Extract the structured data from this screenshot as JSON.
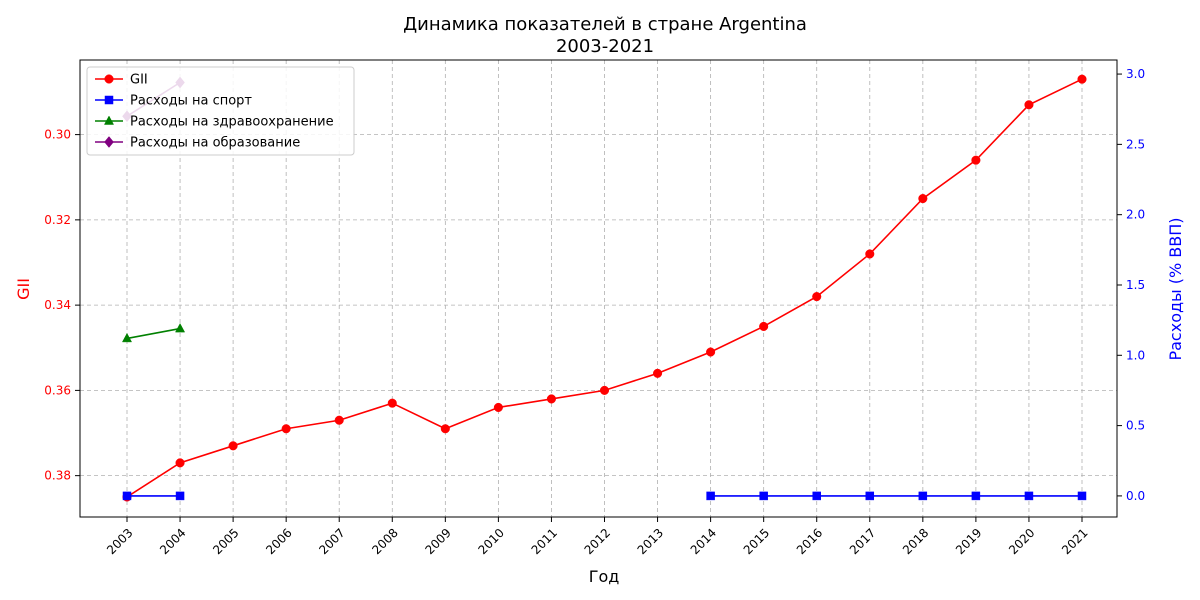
{
  "chart_data": {
    "type": "line",
    "title": "Динамика показателей в стране Argentina",
    "subtitle": "2003-2021",
    "xlabel": "Год",
    "ylabel_left": "GII",
    "ylabel_right": "Расходы (% ВВП)",
    "x": [
      2003,
      2004,
      2005,
      2006,
      2007,
      2008,
      2009,
      2010,
      2011,
      2012,
      2013,
      2014,
      2015,
      2016,
      2017,
      2018,
      2019,
      2020,
      2021
    ],
    "ylim_left": [
      0.3897,
      0.2825
    ],
    "ylim_right": [
      -0.15,
      3.1
    ],
    "left_axis_inverted": true,
    "left_ticks": [
      0.3,
      0.32,
      0.34,
      0.36,
      0.38
    ],
    "right_ticks": [
      0.0,
      0.5,
      1.0,
      1.5,
      2.0,
      2.5,
      3.0
    ],
    "grid": true,
    "legend_position": "top-left",
    "series": [
      {
        "name": "GII",
        "axis": "left",
        "color": "#ff0000",
        "marker": "circle",
        "values": [
          0.385,
          0.377,
          0.373,
          0.369,
          0.367,
          0.363,
          0.369,
          0.364,
          0.362,
          0.36,
          0.356,
          0.351,
          0.345,
          0.338,
          0.328,
          0.315,
          0.306,
          0.293,
          0.287
        ]
      },
      {
        "name": "Расходы на спорт",
        "axis": "right",
        "color": "#0000ff",
        "marker": "square",
        "values": [
          0.0,
          0.0,
          null,
          null,
          null,
          null,
          null,
          null,
          null,
          null,
          null,
          0.0,
          0.0,
          0.0,
          0.0,
          0.0,
          0.0,
          0.0,
          0.0
        ]
      },
      {
        "name": "Расходы на здравоохранение",
        "axis": "right",
        "color": "#008000",
        "marker": "triangle",
        "values": [
          1.12,
          1.19,
          null,
          null,
          null,
          null,
          null,
          null,
          null,
          null,
          null,
          null,
          null,
          null,
          null,
          null,
          null,
          null,
          null
        ]
      },
      {
        "name": "Расходы на образование",
        "axis": "right",
        "color": "#800080",
        "marker": "diamond",
        "values": [
          2.7,
          2.94,
          null,
          null,
          null,
          null,
          null,
          null,
          null,
          null,
          null,
          null,
          null,
          null,
          null,
          null,
          null,
          null,
          null
        ]
      }
    ]
  }
}
